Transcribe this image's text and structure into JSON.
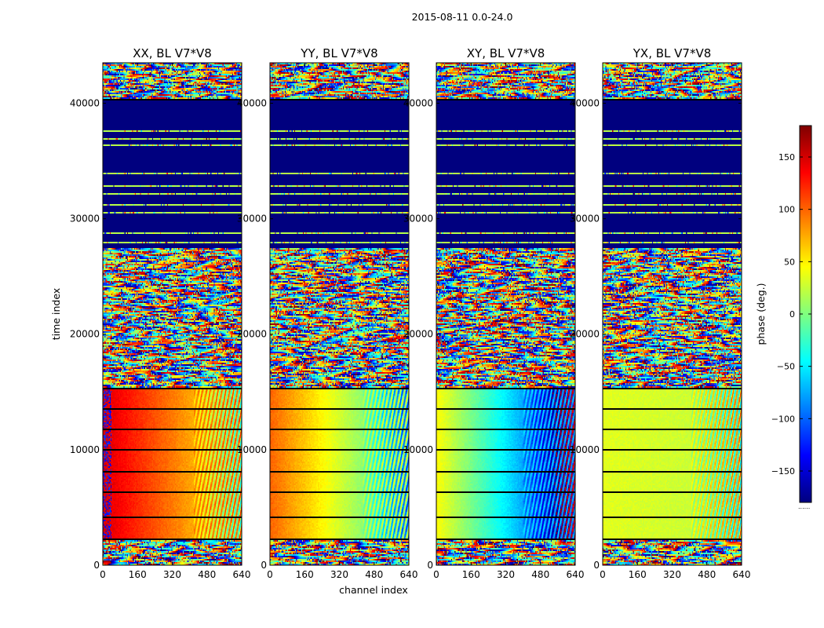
{
  "figure": {
    "suptitle": "2015-08-11 0.0-24.0",
    "xlabel": "channel index",
    "ylabel": "time index",
    "colorbar_label": "phase (deg.)",
    "colorbar_dots": "......"
  },
  "colors": {
    "jet": [
      "#00007f",
      "#0000ff",
      "#007fff",
      "#00ffff",
      "#7fff7f",
      "#ffff00",
      "#ff7f00",
      "#ff0000",
      "#7f0000"
    ],
    "flag": "#00007f",
    "gap": "#000000"
  },
  "chart_data": {
    "type": "heatmap",
    "x_range": [
      0,
      640
    ],
    "y_range": [
      0,
      43500
    ],
    "x_ticks": [
      0,
      160,
      320,
      480,
      640
    ],
    "x_tick_labels": [
      "0",
      "160",
      "320",
      "480",
      "640"
    ],
    "y_ticks": [
      0,
      10000,
      20000,
      30000,
      40000
    ],
    "y_tick_labels": [
      "0",
      "10000",
      "20000",
      "30000",
      "40000"
    ],
    "color_range": [
      -180,
      180
    ],
    "colorbar_ticks": [
      -150,
      -100,
      -50,
      0,
      50,
      100,
      150
    ],
    "colorbar_tick_labels": [
      "−150",
      "−100",
      "−50",
      "0",
      "50",
      "100",
      "150"
    ],
    "panels": [
      {
        "title": "XX, BL V7*V8",
        "base_phase": 150,
        "slope": -0.18,
        "ripple_start": 420,
        "blue_spots": true
      },
      {
        "title": "YY, BL V7*V8",
        "base_phase": 100,
        "slope": -0.22,
        "ripple_start": 430,
        "blue_spots": false
      },
      {
        "title": "XY, BL V7*V8",
        "base_phase": 45,
        "slope": -0.3,
        "ripple_start": 400,
        "blue_spots": false
      },
      {
        "title": "YX, BL V7*V8",
        "base_phase": 35,
        "slope": -0.02,
        "ripple_start": 410,
        "blue_spots": false
      }
    ],
    "time_segments": [
      {
        "from": 0,
        "to": 2200,
        "kind": "noisy"
      },
      {
        "from": 2200,
        "to": 15300,
        "kind": "smooth"
      },
      {
        "from": 15300,
        "to": 27500,
        "kind": "noisy"
      },
      {
        "from": 27500,
        "to": 40300,
        "kind": "flagged"
      },
      {
        "from": 40300,
        "to": 43500,
        "kind": "noisy_top"
      }
    ],
    "gap_lines": [
      2200,
      4050,
      6250,
      8100,
      9950,
      11700,
      13550,
      15300,
      40300
    ],
    "flag_stripes": [
      28000,
      28800,
      30500,
      31200,
      32200,
      32800,
      33900,
      36400,
      37000,
      37600
    ]
  }
}
